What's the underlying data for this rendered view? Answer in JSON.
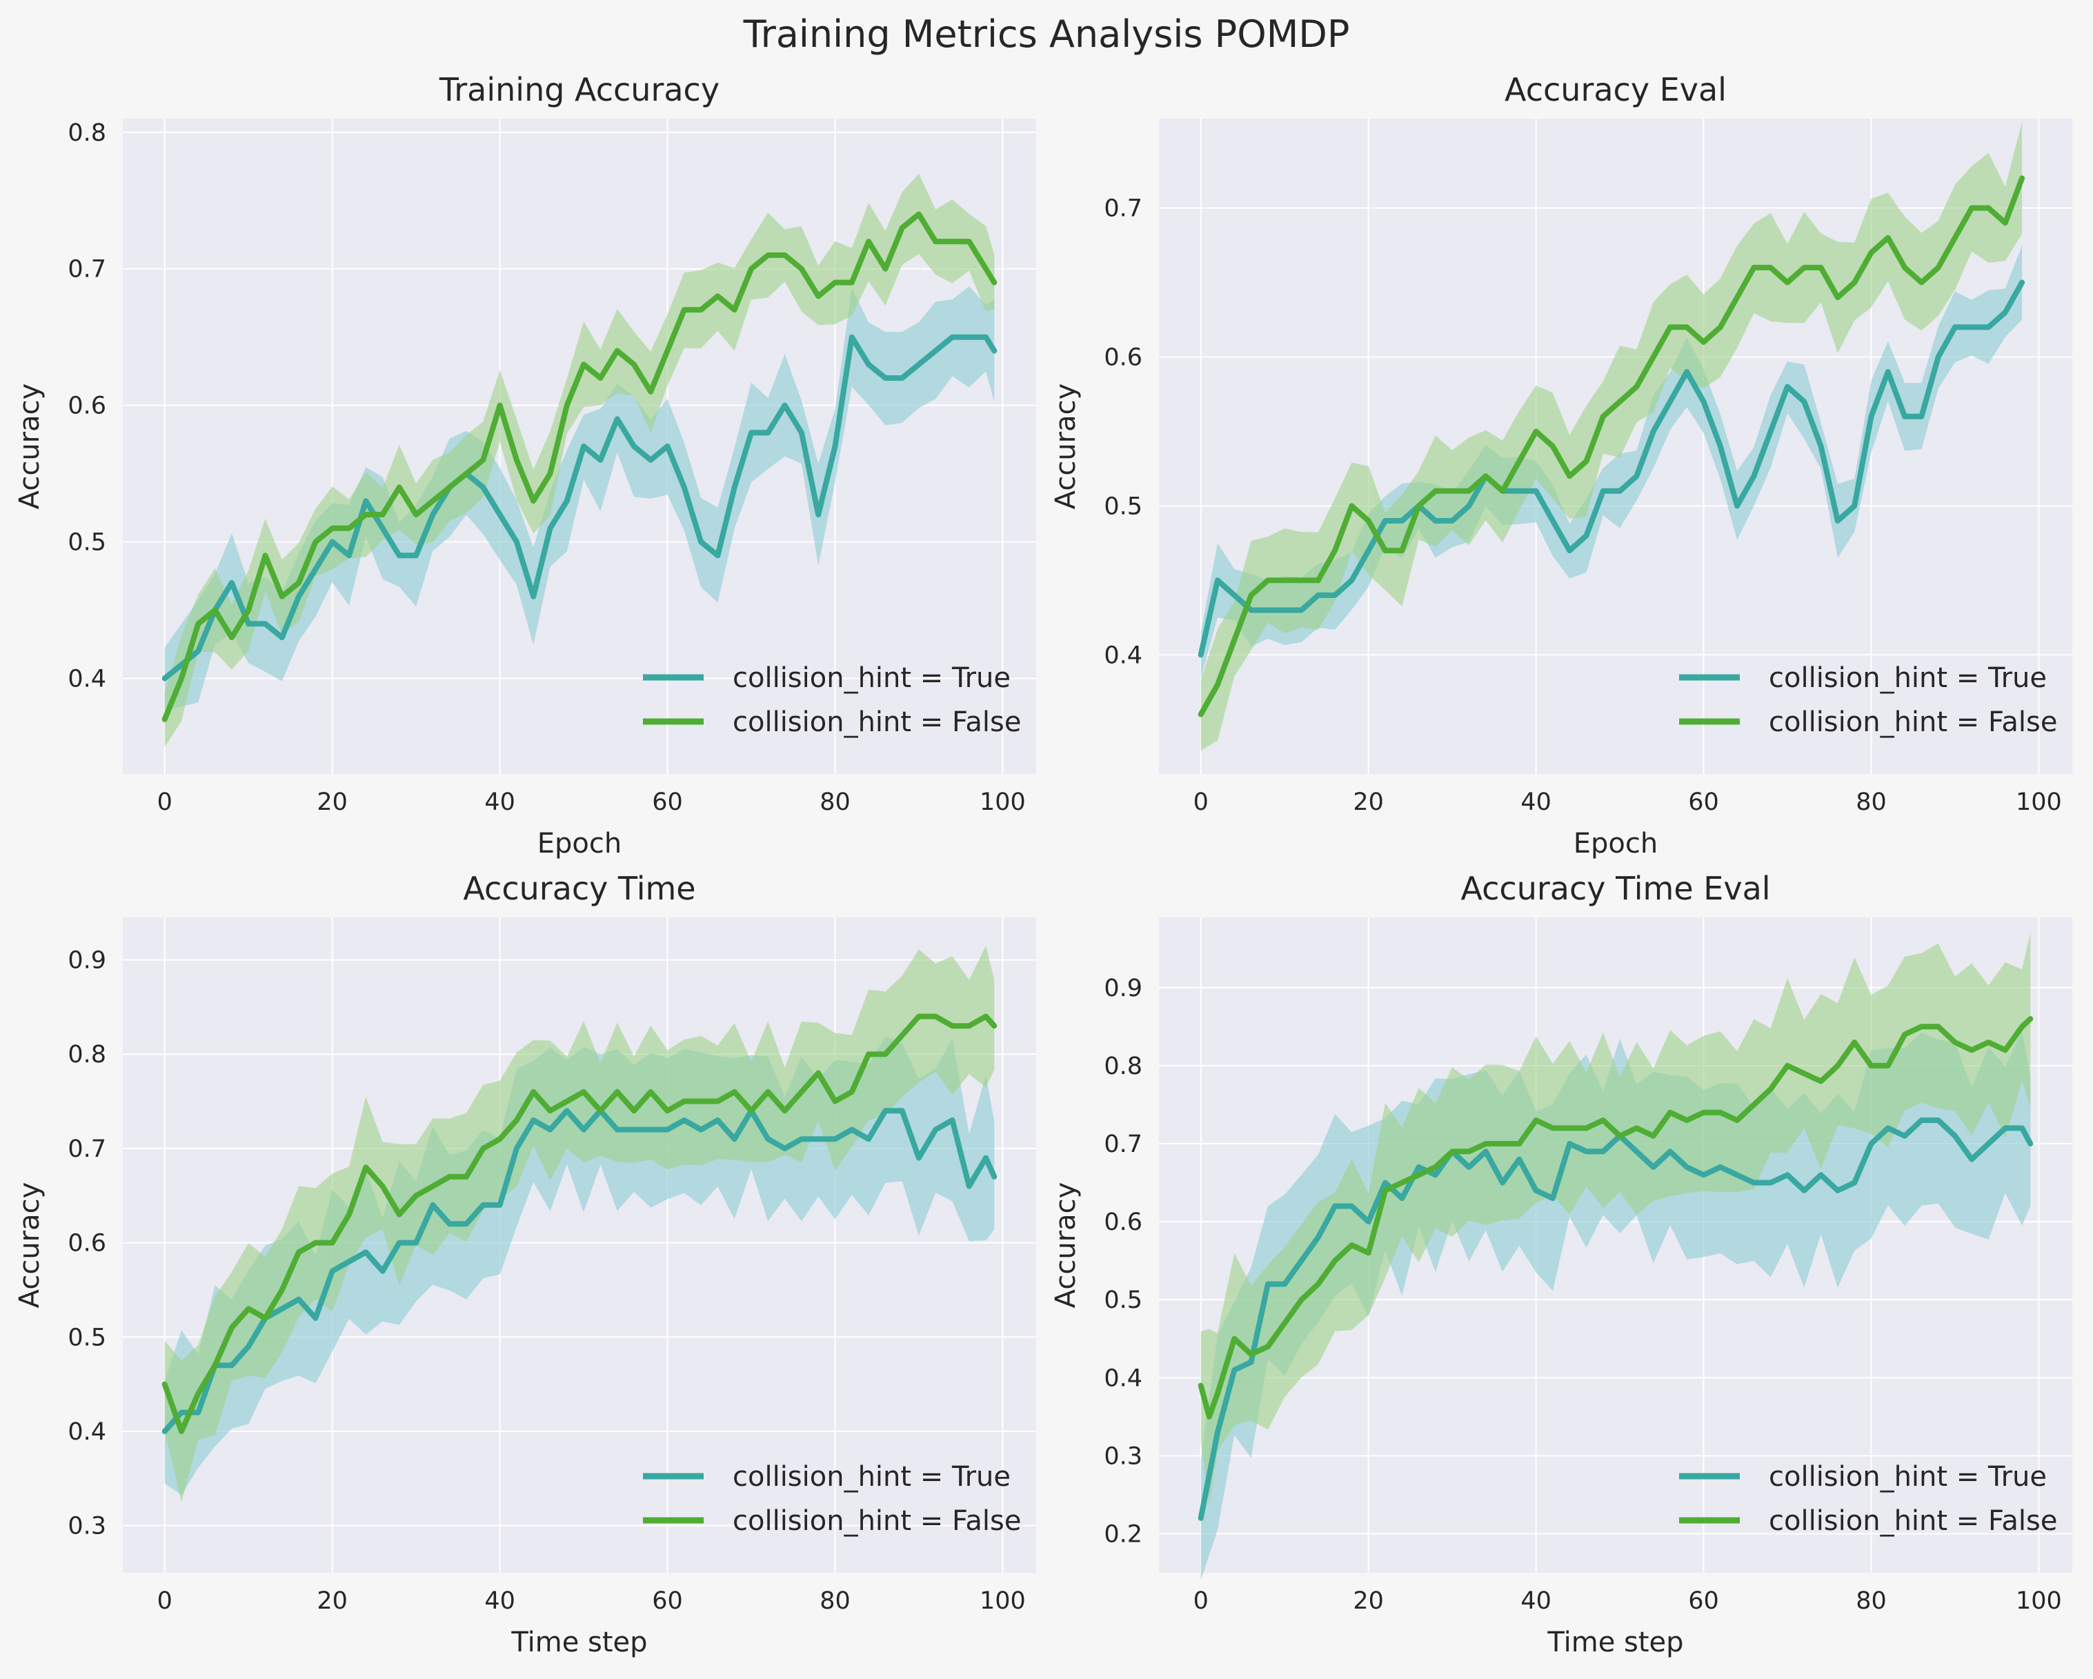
{
  "figure": {
    "title": "Training Metrics Analysis POMDP"
  },
  "colors": {
    "true_line": "#38a8a0",
    "true_band": "#8ccbd3",
    "false_line": "#4fad34",
    "false_band": "#9fd28a",
    "axes_bg": "#eaeaf2",
    "grid": "#ffffff"
  },
  "chart_data": [
    {
      "type": "line",
      "title": "Training Accuracy",
      "xlabel": "Epoch",
      "ylabel": "Accuracy",
      "xlim": [
        -5,
        104
      ],
      "ylim": [
        0.33,
        0.81
      ],
      "xticks": [
        0,
        20,
        40,
        60,
        80,
        100
      ],
      "yticks": [
        0.4,
        0.5,
        0.6,
        0.7,
        0.8
      ],
      "legend": "lower-right",
      "grid": true,
      "series": [
        {
          "name": "collision_hint = True",
          "x": [
            0,
            4,
            6,
            8,
            10,
            12,
            14,
            16,
            18,
            20,
            22,
            24,
            26,
            28,
            30,
            32,
            34,
            36,
            38,
            40,
            42,
            44,
            46,
            48,
            50,
            52,
            54,
            56,
            58,
            60,
            62,
            64,
            66,
            68,
            70,
            72,
            74,
            76,
            78,
            80,
            82,
            84,
            86,
            88,
            90,
            92,
            94,
            96,
            98,
            99
          ],
          "y": [
            0.4,
            0.42,
            0.45,
            0.47,
            0.44,
            0.44,
            0.43,
            0.46,
            0.48,
            0.5,
            0.49,
            0.53,
            0.51,
            0.49,
            0.49,
            0.52,
            0.54,
            0.55,
            0.54,
            0.52,
            0.5,
            0.46,
            0.51,
            0.53,
            0.57,
            0.56,
            0.59,
            0.57,
            0.56,
            0.57,
            0.54,
            0.5,
            0.49,
            0.54,
            0.58,
            0.58,
            0.6,
            0.58,
            0.52,
            0.57,
            0.65,
            0.63,
            0.62,
            0.62,
            0.63,
            0.64,
            0.65,
            0.65,
            0.65,
            0.64
          ],
          "band": 0.03
        },
        {
          "name": "collision_hint = False",
          "x": [
            0,
            2,
            4,
            6,
            8,
            10,
            12,
            14,
            16,
            18,
            20,
            22,
            24,
            26,
            28,
            30,
            32,
            34,
            36,
            38,
            40,
            42,
            44,
            46,
            48,
            50,
            52,
            54,
            56,
            58,
            60,
            62,
            64,
            66,
            68,
            70,
            72,
            74,
            76,
            78,
            80,
            82,
            84,
            86,
            88,
            90,
            92,
            94,
            96,
            98,
            99
          ],
          "y": [
            0.37,
            0.4,
            0.44,
            0.45,
            0.43,
            0.45,
            0.49,
            0.46,
            0.47,
            0.5,
            0.51,
            0.51,
            0.52,
            0.52,
            0.54,
            0.52,
            0.53,
            0.54,
            0.55,
            0.56,
            0.6,
            0.56,
            0.53,
            0.55,
            0.6,
            0.63,
            0.62,
            0.64,
            0.63,
            0.61,
            0.64,
            0.67,
            0.67,
            0.68,
            0.67,
            0.7,
            0.71,
            0.71,
            0.7,
            0.68,
            0.69,
            0.69,
            0.72,
            0.7,
            0.73,
            0.74,
            0.72,
            0.72,
            0.72,
            0.7,
            0.69
          ],
          "band": 0.025
        }
      ]
    },
    {
      "type": "line",
      "title": "Accuracy Eval",
      "xlabel": "Epoch",
      "ylabel": "Accuracy",
      "xlim": [
        -5,
        104
      ],
      "ylim": [
        0.32,
        0.76
      ],
      "xticks": [
        0,
        20,
        40,
        60,
        80,
        100
      ],
      "yticks": [
        0.4,
        0.5,
        0.6,
        0.7
      ],
      "legend": "lower-right",
      "grid": true,
      "series": [
        {
          "name": "collision_hint = True",
          "x": [
            0,
            2,
            4,
            6,
            8,
            10,
            12,
            14,
            16,
            18,
            20,
            22,
            24,
            26,
            28,
            30,
            32,
            34,
            36,
            38,
            40,
            42,
            44,
            46,
            48,
            50,
            52,
            54,
            56,
            58,
            60,
            62,
            64,
            66,
            68,
            70,
            72,
            74,
            76,
            78,
            80,
            82,
            84,
            86,
            88,
            90,
            92,
            94,
            96,
            98
          ],
          "y": [
            0.4,
            0.45,
            0.44,
            0.43,
            0.43,
            0.43,
            0.43,
            0.44,
            0.44,
            0.45,
            0.47,
            0.49,
            0.49,
            0.5,
            0.49,
            0.49,
            0.5,
            0.52,
            0.51,
            0.51,
            0.51,
            0.49,
            0.47,
            0.48,
            0.51,
            0.51,
            0.52,
            0.55,
            0.57,
            0.59,
            0.57,
            0.54,
            0.5,
            0.52,
            0.55,
            0.58,
            0.57,
            0.54,
            0.49,
            0.5,
            0.56,
            0.59,
            0.56,
            0.56,
            0.6,
            0.62,
            0.62,
            0.62,
            0.63,
            0.65
          ],
          "band": 0.02
        },
        {
          "name": "collision_hint = False",
          "x": [
            0,
            2,
            4,
            6,
            8,
            10,
            12,
            14,
            16,
            18,
            20,
            22,
            24,
            26,
            28,
            30,
            32,
            34,
            36,
            38,
            40,
            42,
            44,
            46,
            48,
            50,
            52,
            54,
            56,
            58,
            60,
            62,
            64,
            66,
            68,
            70,
            72,
            74,
            76,
            78,
            80,
            82,
            84,
            86,
            88,
            90,
            92,
            94,
            96,
            98
          ],
          "y": [
            0.36,
            0.38,
            0.41,
            0.44,
            0.45,
            0.45,
            0.45,
            0.45,
            0.47,
            0.5,
            0.49,
            0.47,
            0.47,
            0.5,
            0.51,
            0.51,
            0.51,
            0.52,
            0.51,
            0.53,
            0.55,
            0.54,
            0.52,
            0.53,
            0.56,
            0.57,
            0.58,
            0.6,
            0.62,
            0.62,
            0.61,
            0.62,
            0.64,
            0.66,
            0.66,
            0.65,
            0.66,
            0.66,
            0.64,
            0.65,
            0.67,
            0.68,
            0.66,
            0.65,
            0.66,
            0.68,
            0.7,
            0.7,
            0.69,
            0.72
          ],
          "band": 0.03
        }
      ]
    },
    {
      "type": "line",
      "title": "Accuracy Time",
      "xlabel": "Time step",
      "ylabel": "Accuracy",
      "xlim": [
        -5,
        104
      ],
      "ylim": [
        0.25,
        0.945
      ],
      "xticks": [
        0,
        20,
        40,
        60,
        80,
        100
      ],
      "yticks": [
        0.3,
        0.4,
        0.5,
        0.6,
        0.7,
        0.8,
        0.9
      ],
      "legend": "lower-right",
      "grid": true,
      "series": [
        {
          "name": "collision_hint = True",
          "x": [
            0,
            2,
            4,
            6,
            8,
            10,
            12,
            14,
            16,
            18,
            20,
            22,
            24,
            26,
            28,
            30,
            32,
            34,
            36,
            38,
            40,
            42,
            44,
            46,
            48,
            50,
            52,
            54,
            56,
            58,
            60,
            62,
            64,
            66,
            68,
            70,
            72,
            74,
            76,
            78,
            80,
            82,
            84,
            86,
            88,
            90,
            92,
            94,
            96,
            98,
            99
          ],
          "y": [
            0.4,
            0.42,
            0.42,
            0.47,
            0.47,
            0.49,
            0.52,
            0.53,
            0.54,
            0.52,
            0.57,
            0.58,
            0.59,
            0.57,
            0.6,
            0.6,
            0.64,
            0.62,
            0.62,
            0.64,
            0.64,
            0.7,
            0.73,
            0.72,
            0.74,
            0.72,
            0.74,
            0.72,
            0.72,
            0.72,
            0.72,
            0.73,
            0.72,
            0.73,
            0.71,
            0.74,
            0.71,
            0.7,
            0.71,
            0.71,
            0.71,
            0.72,
            0.71,
            0.74,
            0.74,
            0.69,
            0.72,
            0.73,
            0.66,
            0.69,
            0.67
          ],
          "band": 0.07
        },
        {
          "name": "collision_hint = False",
          "x": [
            0,
            2,
            4,
            6,
            8,
            10,
            12,
            14,
            16,
            18,
            20,
            22,
            24,
            26,
            28,
            30,
            32,
            34,
            36,
            38,
            40,
            42,
            44,
            46,
            48,
            50,
            52,
            54,
            56,
            58,
            60,
            62,
            64,
            66,
            68,
            70,
            72,
            74,
            76,
            78,
            80,
            82,
            84,
            86,
            88,
            90,
            92,
            94,
            96,
            98,
            99
          ],
          "y": [
            0.45,
            0.4,
            0.44,
            0.47,
            0.51,
            0.53,
            0.52,
            0.55,
            0.59,
            0.6,
            0.6,
            0.63,
            0.68,
            0.66,
            0.63,
            0.65,
            0.66,
            0.67,
            0.67,
            0.7,
            0.71,
            0.73,
            0.76,
            0.74,
            0.75,
            0.76,
            0.74,
            0.76,
            0.74,
            0.76,
            0.74,
            0.75,
            0.75,
            0.75,
            0.76,
            0.74,
            0.76,
            0.74,
            0.76,
            0.78,
            0.75,
            0.76,
            0.8,
            0.8,
            0.82,
            0.84,
            0.84,
            0.83,
            0.83,
            0.84,
            0.83
          ],
          "band": 0.06
        }
      ]
    },
    {
      "type": "line",
      "title": "Accuracy Time Eval",
      "xlabel": "Time step",
      "ylabel": "Accuracy",
      "xlim": [
        -5,
        104
      ],
      "ylim": [
        0.15,
        0.99
      ],
      "xticks": [
        0,
        20,
        40,
        60,
        80,
        100
      ],
      "yticks": [
        0.2,
        0.3,
        0.4,
        0.5,
        0.6,
        0.7,
        0.8,
        0.9
      ],
      "legend": "lower-right",
      "grid": true,
      "series": [
        {
          "name": "collision_hint = True",
          "x": [
            0,
            2,
            4,
            6,
            8,
            10,
            12,
            14,
            16,
            18,
            20,
            22,
            24,
            26,
            28,
            30,
            32,
            34,
            36,
            38,
            40,
            42,
            44,
            46,
            48,
            50,
            52,
            54,
            56,
            58,
            60,
            62,
            64,
            66,
            68,
            70,
            72,
            74,
            76,
            78,
            80,
            82,
            84,
            86,
            88,
            90,
            92,
            94,
            96,
            98,
            99
          ],
          "y": [
            0.22,
            0.33,
            0.41,
            0.42,
            0.52,
            0.52,
            0.55,
            0.58,
            0.62,
            0.62,
            0.6,
            0.65,
            0.63,
            0.67,
            0.66,
            0.69,
            0.67,
            0.69,
            0.65,
            0.68,
            0.64,
            0.63,
            0.7,
            0.69,
            0.69,
            0.71,
            0.69,
            0.67,
            0.69,
            0.67,
            0.66,
            0.67,
            0.66,
            0.65,
            0.65,
            0.66,
            0.64,
            0.66,
            0.64,
            0.65,
            0.7,
            0.72,
            0.71,
            0.73,
            0.73,
            0.71,
            0.68,
            0.7,
            0.72,
            0.72,
            0.7
          ],
          "band": 0.1
        },
        {
          "name": "collision_hint = False",
          "x": [
            0,
            1,
            2,
            4,
            6,
            8,
            10,
            12,
            14,
            16,
            18,
            20,
            22,
            24,
            26,
            28,
            30,
            32,
            34,
            36,
            38,
            40,
            42,
            44,
            46,
            48,
            50,
            52,
            54,
            56,
            58,
            60,
            62,
            64,
            66,
            68,
            70,
            72,
            74,
            76,
            78,
            80,
            82,
            84,
            86,
            88,
            90,
            92,
            94,
            96,
            98,
            99
          ],
          "y": [
            0.39,
            0.35,
            0.38,
            0.45,
            0.43,
            0.44,
            0.47,
            0.5,
            0.52,
            0.55,
            0.57,
            0.56,
            0.64,
            0.65,
            0.66,
            0.67,
            0.69,
            0.69,
            0.7,
            0.7,
            0.7,
            0.73,
            0.72,
            0.72,
            0.72,
            0.73,
            0.71,
            0.72,
            0.71,
            0.74,
            0.73,
            0.74,
            0.74,
            0.73,
            0.75,
            0.77,
            0.8,
            0.79,
            0.78,
            0.8,
            0.83,
            0.8,
            0.8,
            0.84,
            0.85,
            0.85,
            0.83,
            0.82,
            0.83,
            0.82,
            0.85,
            0.86
          ],
          "band": 0.09
        }
      ]
    }
  ]
}
